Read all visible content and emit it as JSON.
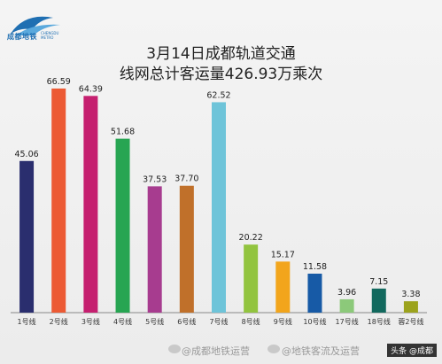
{
  "logo": {
    "name": "成都地铁",
    "sub": "CHENGDU METRO"
  },
  "title_line1": "3月14日成都轨道交通",
  "title_line2": "线网总计客运量426.93万乘次",
  "chart_data": {
    "type": "bar",
    "title": "3月14日成都轨道交通线网总计客运量426.93万乘次",
    "categories": [
      "1号线",
      "2号线",
      "3号线",
      "4号线",
      "5号线",
      "6号线",
      "7号线",
      "8号线",
      "9号线",
      "10号线",
      "17号线",
      "18号线",
      "蓉2号线"
    ],
    "values": [
      45.06,
      66.59,
      64.39,
      51.68,
      37.53,
      37.7,
      62.52,
      20.22,
      15.17,
      11.58,
      3.96,
      7.15,
      3.38
    ],
    "value_labels": [
      "45.06",
      "66.59",
      "64.39",
      "51.68",
      "37.53",
      "37.70",
      "62.52",
      "20.22",
      "15.17",
      "11.58",
      "3.96",
      "7.15",
      "3.38"
    ],
    "colors": [
      "#2a2e6e",
      "#ec5a34",
      "#c51f6f",
      "#27a552",
      "#a73c8f",
      "#c0702a",
      "#6ec4d9",
      "#92c43f",
      "#f2a51c",
      "#175aa6",
      "#8cc97a",
      "#12695e",
      "#9ca31d"
    ],
    "ylim": [
      0,
      75
    ],
    "grid": false,
    "legend": "none"
  },
  "watermark": {
    "left": "@成都地铁运营",
    "right": "@地铁客流及运营",
    "stamp": "头条 @成都"
  }
}
